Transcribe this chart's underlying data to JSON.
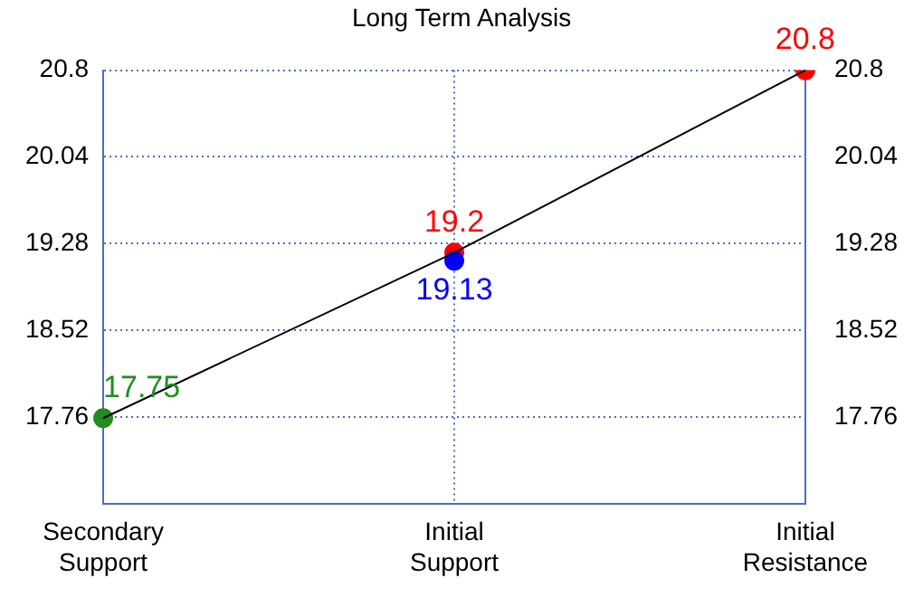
{
  "chart_data": {
    "type": "line",
    "title": "Long Term Analysis",
    "categories": [
      "Secondary Support",
      "Initial Support",
      "Initial Resistance"
    ],
    "ylim": [
      17.0,
      20.8
    ],
    "yticks": [
      17.76,
      18.52,
      19.28,
      20.04,
      20.8
    ],
    "y2lim": [
      17.0,
      20.8
    ],
    "y2ticks": [
      17.76,
      18.52,
      19.28,
      20.04,
      20.8
    ],
    "series": [
      {
        "color": "#000000",
        "marker": "none",
        "values": [
          17.75,
          19.2,
          20.8
        ]
      },
      {
        "type": "scatter",
        "color": "#228b22",
        "values": [
          17.75,
          null,
          null
        ],
        "value_labels": [
          "17.75",
          null,
          null
        ]
      },
      {
        "type": "scatter",
        "color": "#0000ff",
        "values": [
          null,
          19.13,
          null
        ],
        "value_labels": [
          null,
          "19.13",
          null
        ]
      },
      {
        "type": "scatter",
        "color": "#ff0000",
        "values": [
          null,
          19.2,
          20.8
        ],
        "value_labels": [
          null,
          "19.2",
          "20.8"
        ]
      }
    ],
    "marker": "circle",
    "grid": true
  }
}
